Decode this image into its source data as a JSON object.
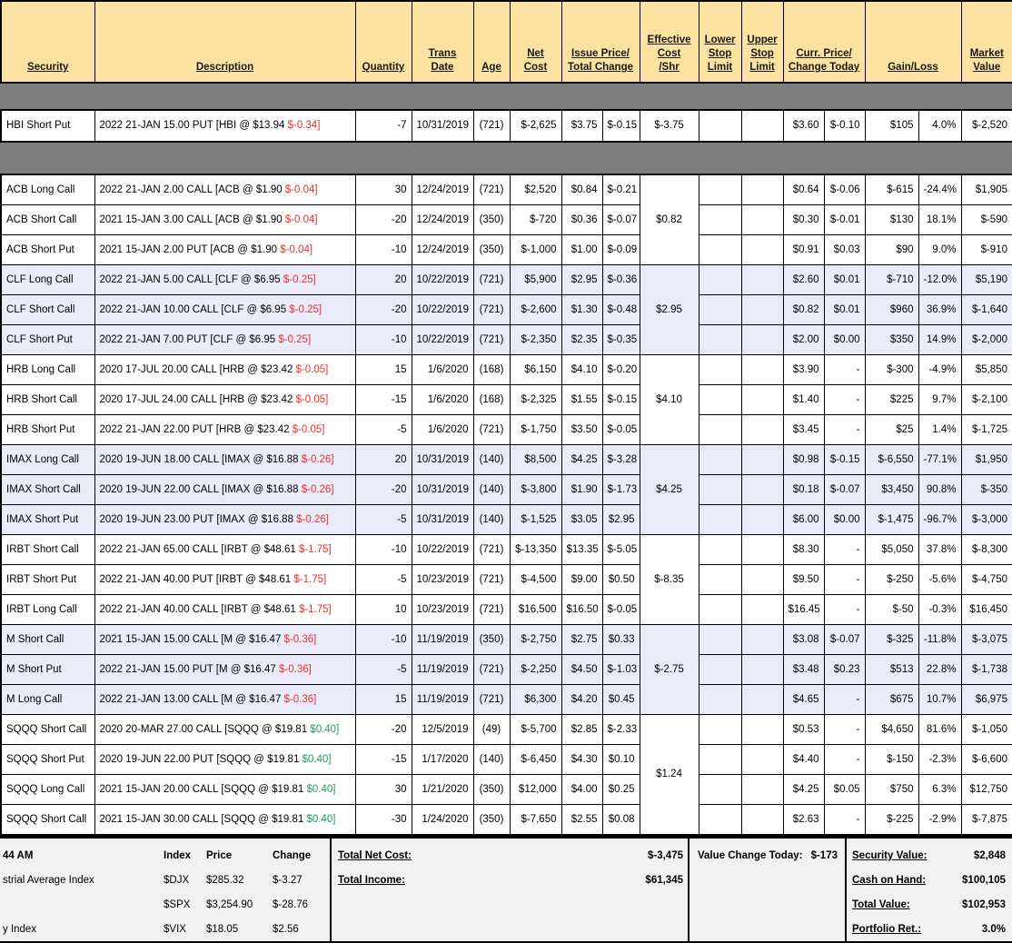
{
  "misc": {
    "dash": "-"
  },
  "colors": {
    "negative": "#ee2e2e",
    "positive": "#239b56",
    "header_bg": "#fbe2a0",
    "shade_bg": "#e9ebf8",
    "page_bg": "#7f7f7f"
  },
  "header": {
    "security": "Security",
    "description": "Description",
    "quantity": "Quantity",
    "trans_date": "Trans\nDate",
    "age": "Age",
    "net_cost": "Net\nCost",
    "issue_price": "Issue Price/\nTotal Change",
    "effective_cost": "Effective\nCost\n/Shr",
    "lower_stop": "Lower\nStop\nLimit",
    "upper_stop": "Upper\nStop\nLimit",
    "curr_price": "Curr. Price/\nChange Today",
    "gain_loss": "Gain/Loss",
    "market_value": "Market\nValue"
  },
  "top_groups": [
    {
      "shade": false,
      "eff": "$-3.75",
      "rows": [
        {
          "sec": "HBI Short Put",
          "pre": "2022 21-JAN 15.00 PUT [HBI @ $13.94 ",
          "chg": "$-0.34]",
          "qty": "-7",
          "date": "10/31/2019",
          "age": "(721)",
          "net": "$-2,625",
          "issue": "$3.75",
          "tchg": "$-0.15",
          "curr": "$3.60",
          "cchg": "$-0.10",
          "gain": "$105",
          "pct": "4.0%",
          "mval": "$-2,520"
        }
      ]
    }
  ],
  "main_groups": [
    {
      "shade": false,
      "eff": "$0.82",
      "rows": [
        {
          "sec": "ACB Long Call",
          "pre": "2022 21-JAN 2.00 CALL [ACB @ $1.90 ",
          "chg": "$-0.04]",
          "qty": "30",
          "date": "12/24/2019",
          "age": "(721)",
          "net": "$2,520",
          "issue": "$0.84",
          "tchg": "$-0.21",
          "curr": "$0.64",
          "cchg": "$-0.06",
          "gain": "$-615",
          "pct": "-24.4%",
          "mval": "$1,905"
        },
        {
          "sec": "ACB Short Call",
          "pre": "2021 15-JAN 3.00 CALL [ACB @ $1.90 ",
          "chg": "$-0.04]",
          "qty": "-20",
          "date": "12/24/2019",
          "age": "(350)",
          "net": "$-720",
          "issue": "$0.36",
          "tchg": "$-0.07",
          "curr": "$0.30",
          "cchg": "$-0.01",
          "gain": "$130",
          "pct": "18.1%",
          "mval": "$-590"
        },
        {
          "sec": "ACB Short Put",
          "pre": "2021 15-JAN 2.00 PUT [ACB @ $1.90 ",
          "chg": "$-0.04]",
          "qty": "-10",
          "date": "12/24/2019",
          "age": "(350)",
          "net": "$-1,000",
          "issue": "$1.00",
          "tchg": "$-0.09",
          "curr": "$0.91",
          "cchg": "$0.03",
          "gain": "$90",
          "pct": "9.0%",
          "mval": "$-910"
        }
      ]
    },
    {
      "shade": true,
      "eff": "$2.95",
      "rows": [
        {
          "sec": "CLF Long Call",
          "pre": "2022 21-JAN 5.00 CALL [CLF @ $6.95 ",
          "chg": "$-0.25]",
          "qty": "20",
          "date": "10/22/2019",
          "age": "(721)",
          "net": "$5,900",
          "issue": "$2.95",
          "tchg": "$-0.36",
          "curr": "$2.60",
          "cchg": "$0.01",
          "gain": "$-710",
          "pct": "-12.0%",
          "mval": "$5,190"
        },
        {
          "sec": "CLF Short Call",
          "pre": "2022 21-JAN 10.00 CALL [CLF @ $6.95 ",
          "chg": "$-0.25]",
          "qty": "-20",
          "date": "10/22/2019",
          "age": "(721)",
          "net": "$-2,600",
          "issue": "$1.30",
          "tchg": "$-0.48",
          "curr": "$0.82",
          "cchg": "$0.01",
          "gain": "$960",
          "pct": "36.9%",
          "mval": "$-1,640"
        },
        {
          "sec": "CLF Short Put",
          "pre": "2022 21-JAN 7.00 PUT [CLF @ $6.95 ",
          "chg": "$-0.25]",
          "qty": "-10",
          "date": "10/22/2019",
          "age": "(721)",
          "net": "$-2,350",
          "issue": "$2.35",
          "tchg": "$-0.35",
          "curr": "$2.00",
          "cchg": "$0.00",
          "gain": "$350",
          "pct": "14.9%",
          "mval": "$-2,000"
        }
      ]
    },
    {
      "shade": false,
      "eff": "$4.10",
      "rows": [
        {
          "sec": "HRB Long Call",
          "pre": "2020 17-JUL 20.00 CALL [HRB @ $23.42 ",
          "chg": "$-0.05]",
          "qty": "15",
          "date": "1/6/2020",
          "age": "(168)",
          "net": "$6,150",
          "issue": "$4.10",
          "tchg": "$-0.20",
          "curr": "$3.90",
          "cchg": "-",
          "gain": "$-300",
          "pct": "-4.9%",
          "mval": "$5,850"
        },
        {
          "sec": "HRB Short Call",
          "pre": "2020 17-JUL 24.00 CALL [HRB @ $23.42 ",
          "chg": "$-0.05]",
          "qty": "-15",
          "date": "1/6/2020",
          "age": "(168)",
          "net": "$-2,325",
          "issue": "$1.55",
          "tchg": "$-0.15",
          "curr": "$1.40",
          "cchg": "-",
          "gain": "$225",
          "pct": "9.7%",
          "mval": "$-2,100"
        },
        {
          "sec": "HRB Short Put",
          "pre": "2022 21-JAN 22.00 PUT [HRB @ $23.42 ",
          "chg": "$-0.05]",
          "qty": "-5",
          "date": "1/6/2020",
          "age": "(721)",
          "net": "$-1,750",
          "issue": "$3.50",
          "tchg": "$-0.05",
          "curr": "$3.45",
          "cchg": "-",
          "gain": "$25",
          "pct": "1.4%",
          "mval": "$-1,725"
        }
      ]
    },
    {
      "shade": true,
      "eff": "$4.25",
      "rows": [
        {
          "sec": "IMAX Long Call",
          "pre": "2020 19-JUN 18.00 CALL [IMAX @ $16.88 ",
          "chg": "$-0.26]",
          "qty": "20",
          "date": "10/31/2019",
          "age": "(140)",
          "net": "$8,500",
          "issue": "$4.25",
          "tchg": "$-3.28",
          "curr": "$0.98",
          "cchg": "$-0.15",
          "gain": "$-6,550",
          "pct": "-77.1%",
          "mval": "$1,950"
        },
        {
          "sec": "IMAX Short Call",
          "pre": "2020 19-JUN 22.00 CALL [IMAX @ $16.88 ",
          "chg": "$-0.26]",
          "qty": "-20",
          "date": "10/31/2019",
          "age": "(140)",
          "net": "$-3,800",
          "issue": "$1.90",
          "tchg": "$-1.73",
          "curr": "$0.18",
          "cchg": "$-0.07",
          "gain": "$3,450",
          "pct": "90.8%",
          "mval": "$-350"
        },
        {
          "sec": "IMAX Short Put",
          "pre": "2020 19-JUN 23.00 PUT [IMAX @ $16.88 ",
          "chg": "$-0.26]",
          "qty": "-5",
          "date": "10/31/2019",
          "age": "(140)",
          "net": "$-1,525",
          "issue": "$3.05",
          "tchg": "$2.95",
          "curr": "$6.00",
          "cchg": "$0.00",
          "gain": "$-1,475",
          "pct": "-96.7%",
          "mval": "$-3,000"
        }
      ]
    },
    {
      "shade": false,
      "eff": "$-8.35",
      "rows": [
        {
          "sec": "IRBT Short Call",
          "pre": "2022 21-JAN 65.00 CALL [IRBT @ $48.61 ",
          "chg": "$-1.75]",
          "qty": "-10",
          "date": "10/22/2019",
          "age": "(721)",
          "net": "$-13,350",
          "issue": "$13.35",
          "tchg": "$-5.05",
          "curr": "$8.30",
          "cchg": "-",
          "gain": "$5,050",
          "pct": "37.8%",
          "mval": "$-8,300"
        },
        {
          "sec": "IRBT Short Put",
          "pre": "2022 21-JAN 40.00 PUT [IRBT @ $48.61 ",
          "chg": "$-1.75]",
          "qty": "-5",
          "date": "10/23/2019",
          "age": "(721)",
          "net": "$-4,500",
          "issue": "$9.00",
          "tchg": "$0.50",
          "curr": "$9.50",
          "cchg": "-",
          "gain": "$-250",
          "pct": "-5.6%",
          "mval": "$-4,750"
        },
        {
          "sec": "IRBT Long Call",
          "pre": "2022 21-JAN 40.00 CALL [IRBT @ $48.61 ",
          "chg": "$-1.75]",
          "qty": "10",
          "date": "10/23/2019",
          "age": "(721)",
          "net": "$16,500",
          "issue": "$16.50",
          "tchg": "$-0.05",
          "curr": "$16.45",
          "cchg": "-",
          "gain": "$-50",
          "pct": "-0.3%",
          "mval": "$16,450"
        }
      ]
    },
    {
      "shade": true,
      "eff": "$-2.75",
      "rows": [
        {
          "sec": "M Short Call",
          "pre": "2021 15-JAN 15.00 CALL [M @ $16.47 ",
          "chg": "$-0.36]",
          "qty": "-10",
          "date": "11/19/2019",
          "age": "(350)",
          "net": "$-2,750",
          "issue": "$2.75",
          "tchg": "$0.33",
          "curr": "$3.08",
          "cchg": "$-0.07",
          "gain": "$-325",
          "pct": "-11.8%",
          "mval": "$-3,075"
        },
        {
          "sec": "M Short Put",
          "pre": "2022 21-JAN 15.00 PUT [M @ $16.47 ",
          "chg": "$-0.36]",
          "qty": "-5",
          "date": "11/19/2019",
          "age": "(721)",
          "net": "$-2,250",
          "issue": "$4.50",
          "tchg": "$-1.03",
          "curr": "$3.48",
          "cchg": "$0.23",
          "gain": "$513",
          "pct": "22.8%",
          "mval": "$-1,738"
        },
        {
          "sec": "M Long Call",
          "pre": "2022 21-JAN 13.00 CALL [M @ $16.47 ",
          "chg": "$-0.36]",
          "qty": "15",
          "date": "11/19/2019",
          "age": "(721)",
          "net": "$6,300",
          "issue": "$4.20",
          "tchg": "$0.45",
          "curr": "$4.65",
          "cchg": "-",
          "gain": "$675",
          "pct": "10.7%",
          "mval": "$6,975"
        }
      ]
    },
    {
      "shade": false,
      "eff": "$1.24",
      "rows": [
        {
          "sec": "SQQQ Short Call",
          "pre": "2020 20-MAR 27.00 CALL [SQQQ @ $19.81 ",
          "chg": "$0.40]",
          "qty": "-20",
          "date": "12/5/2019",
          "age": "(49)",
          "net": "$-5,700",
          "issue": "$2.85",
          "tchg": "$-2.33",
          "curr": "$0.53",
          "cchg": "-",
          "gain": "$4,650",
          "pct": "81.6%",
          "mval": "$-1,050"
        },
        {
          "sec": "SQQQ Short Put",
          "pre": "2020 19-JUN 22.00 PUT [SQQQ @ $19.81 ",
          "chg": "$0.40]",
          "qty": "-15",
          "date": "1/17/2020",
          "age": "(140)",
          "net": "$-6,450",
          "issue": "$4.30",
          "tchg": "$0.10",
          "curr": "$4.40",
          "cchg": "-",
          "gain": "$-150",
          "pct": "-2.3%",
          "mval": "$-6,600"
        },
        {
          "sec": "SQQQ Long Call",
          "pre": "2021 15-JAN 20.00 CALL [SQQQ @ $19.81 ",
          "chg": "$0.40]",
          "qty": "30",
          "date": "1/21/2020",
          "age": "(350)",
          "net": "$12,000",
          "issue": "$4.00",
          "tchg": "$0.25",
          "curr": "$4.25",
          "cchg": "$0.05",
          "gain": "$750",
          "pct": "6.3%",
          "mval": "$12,750"
        },
        {
          "sec": "SQQQ Short Call",
          "pre": "2021 15-JAN 30.00 CALL [SQQQ @ $19.81 ",
          "chg": "$0.40]",
          "qty": "-30",
          "date": "1/24/2020",
          "age": "(350)",
          "net": "$-7,650",
          "issue": "$2.55",
          "tchg": "$0.08",
          "curr": "$2.63",
          "cchg": "-",
          "gain": "$-225",
          "pct": "-2.9%",
          "mval": "$-7,875"
        }
      ]
    }
  ],
  "summary": {
    "time": "44 AM",
    "index_table": {
      "headers": {
        "index": "Index",
        "price": "Price",
        "change": "Change"
      },
      "rows": [
        {
          "name": "strial Average Index",
          "index": "$DJX",
          "price": "$285.32",
          "change": "$-3.27"
        },
        {
          "name": "",
          "index": "$SPX",
          "price": "$3,254.90",
          "change": "$-28.76"
        },
        {
          "name": "y Index",
          "index": "$VIX",
          "price": "$18.05",
          "change": "$2.56"
        }
      ]
    },
    "totals": {
      "net_cost_label": "Total Net Cost:",
      "net_cost": "$-3,475",
      "income_label": "Total Income:",
      "income": "$61,345"
    },
    "value_change": {
      "label": "Value Change Today:",
      "value": "$-173"
    },
    "account": {
      "rows": [
        {
          "label": "Security Value:",
          "value": "$2,848"
        },
        {
          "label": "Cash on Hand:",
          "value": "$100,105"
        },
        {
          "label": "Total Value:",
          "value": "$102,953"
        },
        {
          "label": "Portfolio Ret.:",
          "value": "3.0%"
        }
      ]
    }
  }
}
